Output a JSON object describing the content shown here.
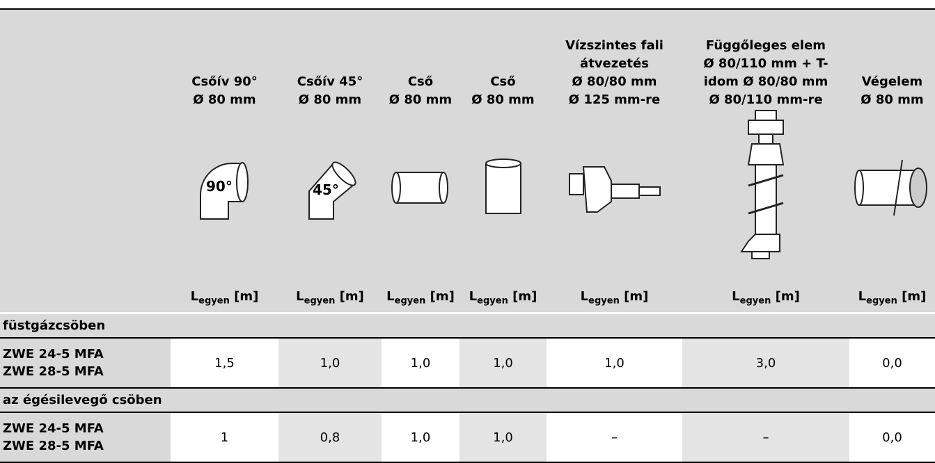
{
  "header": {
    "columns": [
      {
        "title": []
      },
      {
        "title": [
          "Csőív 90°",
          "Ø 80 mm"
        ],
        "icon_label": "90°",
        "unit": {
          "main": "L",
          "sub": "egyen",
          "rest": "[m]"
        }
      },
      {
        "title": [
          "Csőív 45°",
          "Ø 80 mm"
        ],
        "icon_label": "45°",
        "unit": {
          "main": "L",
          "sub": "egyen",
          "rest": "[m]"
        }
      },
      {
        "title": [
          "Cső",
          "Ø 80 mm"
        ],
        "unit": {
          "main": "L",
          "sub": "egyen",
          "rest": "[m]"
        }
      },
      {
        "title": [
          "Cső",
          "Ø 80 mm"
        ],
        "unit": {
          "main": "L",
          "sub": "egyen",
          "rest": "[m]"
        }
      },
      {
        "title": [
          "Vízszintes fali",
          "átvezetés",
          "Ø 80/80 mm",
          "Ø 125 mm-re"
        ],
        "unit": {
          "main": "L",
          "sub": "egyen",
          "rest": "[m]"
        }
      },
      {
        "title": [
          "Függőleges elem",
          "Ø 80/110 mm + T-",
          "idom Ø 80/80 mm",
          "Ø 80/110 mm-re"
        ],
        "unit": {
          "main": "L",
          "sub": "egyen",
          "rest": "[m]"
        }
      },
      {
        "title": [
          "Végelem",
          "Ø 80 mm"
        ],
        "unit": {
          "main": "L",
          "sub": "egyen",
          "rest": "[m]"
        }
      }
    ]
  },
  "sections": [
    {
      "title": "füstgázcsöben",
      "rows": [
        {
          "models": [
            "ZWE 24-5 MFA",
            "ZWE 28-5 MFA"
          ],
          "values": [
            "1,5",
            "1,0",
            "1,0",
            "1,0",
            "1,0",
            "3,0",
            "0,0"
          ]
        }
      ]
    },
    {
      "title": "az égésilevegő csöben",
      "rows": [
        {
          "models": [
            "ZWE 24-5 MFA",
            "ZWE 28-5 MFA"
          ],
          "values": [
            "1",
            "0,8",
            "1,0",
            "1,0",
            "–",
            "–",
            "0,0"
          ]
        }
      ]
    }
  ]
}
